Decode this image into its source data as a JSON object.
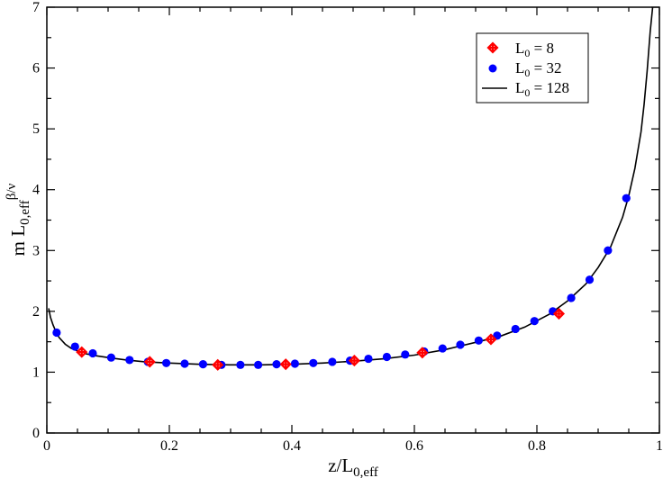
{
  "chart_data": {
    "type": "scatter",
    "xlabel": {
      "base": "z/L",
      "sub": "0,eff"
    },
    "ylabel": {
      "pre": "m L",
      "sub": "0,eff",
      "sup": "β/ν"
    },
    "xlim": [
      0,
      1
    ],
    "ylim": [
      0,
      7
    ],
    "x_ticks": [
      "0",
      "0.2",
      "0.4",
      "0.6",
      "0.8",
      "1"
    ],
    "y_ticks": [
      "0",
      "1",
      "2",
      "3",
      "4",
      "5",
      "6",
      "7"
    ],
    "grid": false,
    "legend_position": "top-right",
    "series": [
      {
        "name": "L0 = 8",
        "label_base": "L",
        "label_sub": "0",
        "label_rest": " = 8",
        "kind": "points",
        "marker": "diamond-cross",
        "color": "#ff0000",
        "x": [
          0.057,
          0.168,
          0.279,
          0.39,
          0.502,
          0.613,
          0.725,
          0.836
        ],
        "y": [
          1.33,
          1.17,
          1.12,
          1.13,
          1.19,
          1.32,
          1.54,
          1.96
        ]
      },
      {
        "name": "L0 = 32",
        "label_base": "L",
        "label_sub": "0",
        "label_rest": " = 32",
        "kind": "points",
        "marker": "circle",
        "color": "#0000ff",
        "x": [
          0.016,
          0.046,
          0.075,
          0.105,
          0.135,
          0.165,
          0.195,
          0.225,
          0.255,
          0.285,
          0.316,
          0.345,
          0.375,
          0.405,
          0.435,
          0.466,
          0.495,
          0.525,
          0.555,
          0.585,
          0.616,
          0.646,
          0.675,
          0.705,
          0.735,
          0.765,
          0.796,
          0.826,
          0.856,
          0.886,
          0.916,
          0.946
        ],
        "y": [
          1.65,
          1.42,
          1.31,
          1.24,
          1.2,
          1.17,
          1.15,
          1.14,
          1.13,
          1.12,
          1.12,
          1.12,
          1.13,
          1.14,
          1.15,
          1.17,
          1.19,
          1.22,
          1.25,
          1.29,
          1.34,
          1.39,
          1.45,
          1.52,
          1.6,
          1.71,
          1.84,
          2.0,
          2.22,
          2.52,
          3.0,
          3.86
        ]
      },
      {
        "name": "L0 = 128",
        "label_base": "L",
        "label_sub": "0",
        "label_rest": " = 128",
        "kind": "line",
        "color": "#000000",
        "x": [
          0.003,
          0.006,
          0.01,
          0.015,
          0.02,
          0.03,
          0.04,
          0.05,
          0.06,
          0.08,
          0.1,
          0.13,
          0.16,
          0.2,
          0.25,
          0.3,
          0.35,
          0.4,
          0.45,
          0.5,
          0.55,
          0.6,
          0.65,
          0.7,
          0.74,
          0.78,
          0.82,
          0.85,
          0.88,
          0.9,
          0.92,
          0.94,
          0.95,
          0.96,
          0.97,
          0.975,
          0.98,
          0.985,
          0.99
        ],
        "y": [
          2.05,
          1.9,
          1.78,
          1.66,
          1.57,
          1.46,
          1.39,
          1.35,
          1.31,
          1.27,
          1.24,
          1.2,
          1.17,
          1.15,
          1.13,
          1.12,
          1.12,
          1.13,
          1.15,
          1.18,
          1.22,
          1.28,
          1.37,
          1.49,
          1.59,
          1.74,
          1.95,
          2.17,
          2.45,
          2.72,
          3.05,
          3.55,
          3.9,
          4.35,
          4.95,
          5.4,
          5.95,
          6.6,
          7.1
        ]
      }
    ]
  }
}
